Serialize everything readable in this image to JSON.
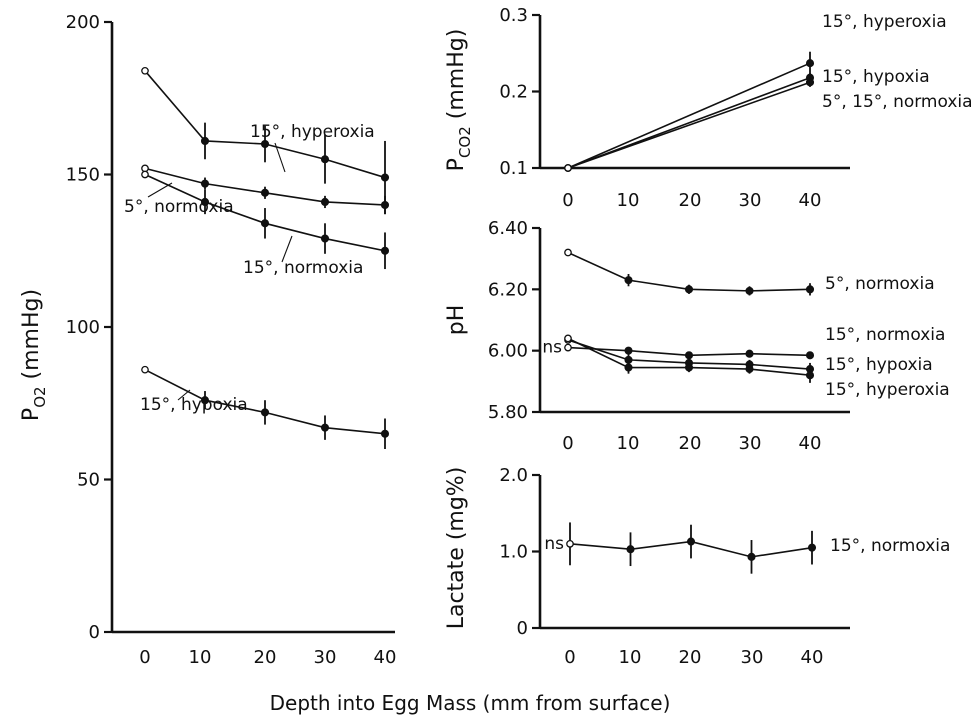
{
  "figure": {
    "xlabel": "Depth into Egg Mass (mm from surface)"
  },
  "chart_data": [
    {
      "id": "po2",
      "type": "line",
      "ylabel": "PO2 (mmHg)",
      "ylabel_main": "P",
      "ylabel_sub": "O2",
      "ylabel_unit": "(mmHg)",
      "ylim": [
        0,
        200
      ],
      "y_ticks": [
        0,
        50,
        100,
        150,
        200
      ],
      "y_tick_labels": [
        "0",
        "50",
        "100",
        "150",
        "200"
      ],
      "x_ticks": [
        0,
        10,
        20,
        30,
        40
      ],
      "x_tick_labels": [
        "0",
        "10",
        "20",
        "30",
        "40"
      ],
      "series": [
        {
          "name": "15°, hyperoxia",
          "x": [
            0,
            10,
            20,
            30,
            40
          ],
          "y": [
            184,
            161,
            160,
            155,
            149
          ],
          "err": [
            0,
            6,
            6,
            8,
            12
          ]
        },
        {
          "name": "5°, normoxia",
          "x": [
            0,
            10,
            20,
            30,
            40
          ],
          "y": [
            152,
            147,
            144,
            141,
            140
          ],
          "err": [
            0,
            2,
            2,
            2,
            3
          ]
        },
        {
          "name": "15°, normoxia",
          "x": [
            0,
            10,
            20,
            30,
            40
          ],
          "y": [
            150,
            141,
            134,
            129,
            125
          ],
          "err": [
            0,
            4,
            5,
            5,
            6
          ]
        },
        {
          "name": "15°, hypoxia",
          "x": [
            0,
            10,
            20,
            30,
            40
          ],
          "y": [
            86,
            76,
            72,
            67,
            65
          ],
          "err": [
            0,
            3,
            4,
            4,
            5
          ]
        }
      ]
    },
    {
      "id": "pco2",
      "type": "line",
      "ylabel": "PCO2 (mmHg)",
      "ylabel_main": "P",
      "ylabel_sub": "CO2",
      "ylabel_unit": "(mmHg)",
      "ylim": [
        0.1,
        0.3
      ],
      "y_ticks": [
        0.1,
        0.2,
        0.3
      ],
      "y_tick_labels": [
        "0.1",
        "0.2",
        "0.3"
      ],
      "x_ticks": [
        0,
        10,
        20,
        30,
        40
      ],
      "x_tick_labels": [
        "0",
        "10",
        "20",
        "30",
        "40"
      ],
      "series": [
        {
          "name": "15°, hyperoxia",
          "x": [
            0,
            40
          ],
          "y": [
            0.1,
            0.237
          ],
          "err": [
            0,
            0.015
          ]
        },
        {
          "name": "15°, hypoxia",
          "x": [
            0,
            40
          ],
          "y": [
            0.1,
            0.218
          ],
          "err": [
            0,
            0.006
          ]
        },
        {
          "name": "5°, 15°, normoxia",
          "x": [
            0,
            40
          ],
          "y": [
            0.1,
            0.212
          ],
          "err": [
            0,
            0.006
          ]
        }
      ]
    },
    {
      "id": "ph",
      "type": "line",
      "ylabel": "pH",
      "ylim": [
        5.8,
        6.4
      ],
      "y_ticks": [
        5.8,
        6.0,
        6.2,
        6.4
      ],
      "y_tick_labels": [
        "5.80",
        "6.00",
        "6.20",
        "6.40"
      ],
      "x_ticks": [
        0,
        10,
        20,
        30,
        40
      ],
      "x_tick_labels": [
        "0",
        "10",
        "20",
        "30",
        "40"
      ],
      "annotations": [
        "ns"
      ],
      "series": [
        {
          "name": "5°, normoxia",
          "x": [
            0,
            10,
            20,
            30,
            40
          ],
          "y": [
            6.32,
            6.23,
            6.2,
            6.195,
            6.2
          ],
          "err": [
            0,
            0.02,
            0.015,
            0.015,
            0.02
          ]
        },
        {
          "name": "15°, normoxia",
          "x": [
            0,
            10,
            20,
            30,
            40
          ],
          "y": [
            6.01,
            6.0,
            5.985,
            5.99,
            5.985
          ],
          "err": [
            0,
            0.01,
            0.01,
            0.01,
            0.012
          ]
        },
        {
          "name": "15°, hypoxia",
          "x": [
            0,
            10,
            20,
            30,
            40
          ],
          "y": [
            6.035,
            5.97,
            5.96,
            5.955,
            5.94
          ],
          "err": [
            0,
            0.02,
            0.015,
            0.015,
            0.02
          ]
        },
        {
          "name": "15°, hyperoxia",
          "x": [
            0,
            10,
            20,
            30,
            40
          ],
          "y": [
            6.04,
            5.945,
            5.945,
            5.94,
            5.92
          ],
          "err": [
            0,
            0.02,
            0.015,
            0.015,
            0.025
          ]
        }
      ]
    },
    {
      "id": "lactate",
      "type": "line",
      "ylabel": "Lactate (mg%)",
      "ylim": [
        0,
        2.0
      ],
      "y_ticks": [
        0,
        1.0,
        2.0
      ],
      "y_tick_labels": [
        "0",
        "1.0",
        "2.0"
      ],
      "x_ticks": [
        0,
        10,
        20,
        30,
        40
      ],
      "x_tick_labels": [
        "0",
        "10",
        "20",
        "30",
        "40"
      ],
      "annotations": [
        "ns"
      ],
      "series": [
        {
          "name": "15°, normoxia",
          "x": [
            0,
            10,
            20,
            30,
            40
          ],
          "y": [
            1.1,
            1.03,
            1.13,
            0.93,
            1.05
          ],
          "err": [
            0.28,
            0.22,
            0.22,
            0.22,
            0.22
          ]
        }
      ]
    }
  ]
}
